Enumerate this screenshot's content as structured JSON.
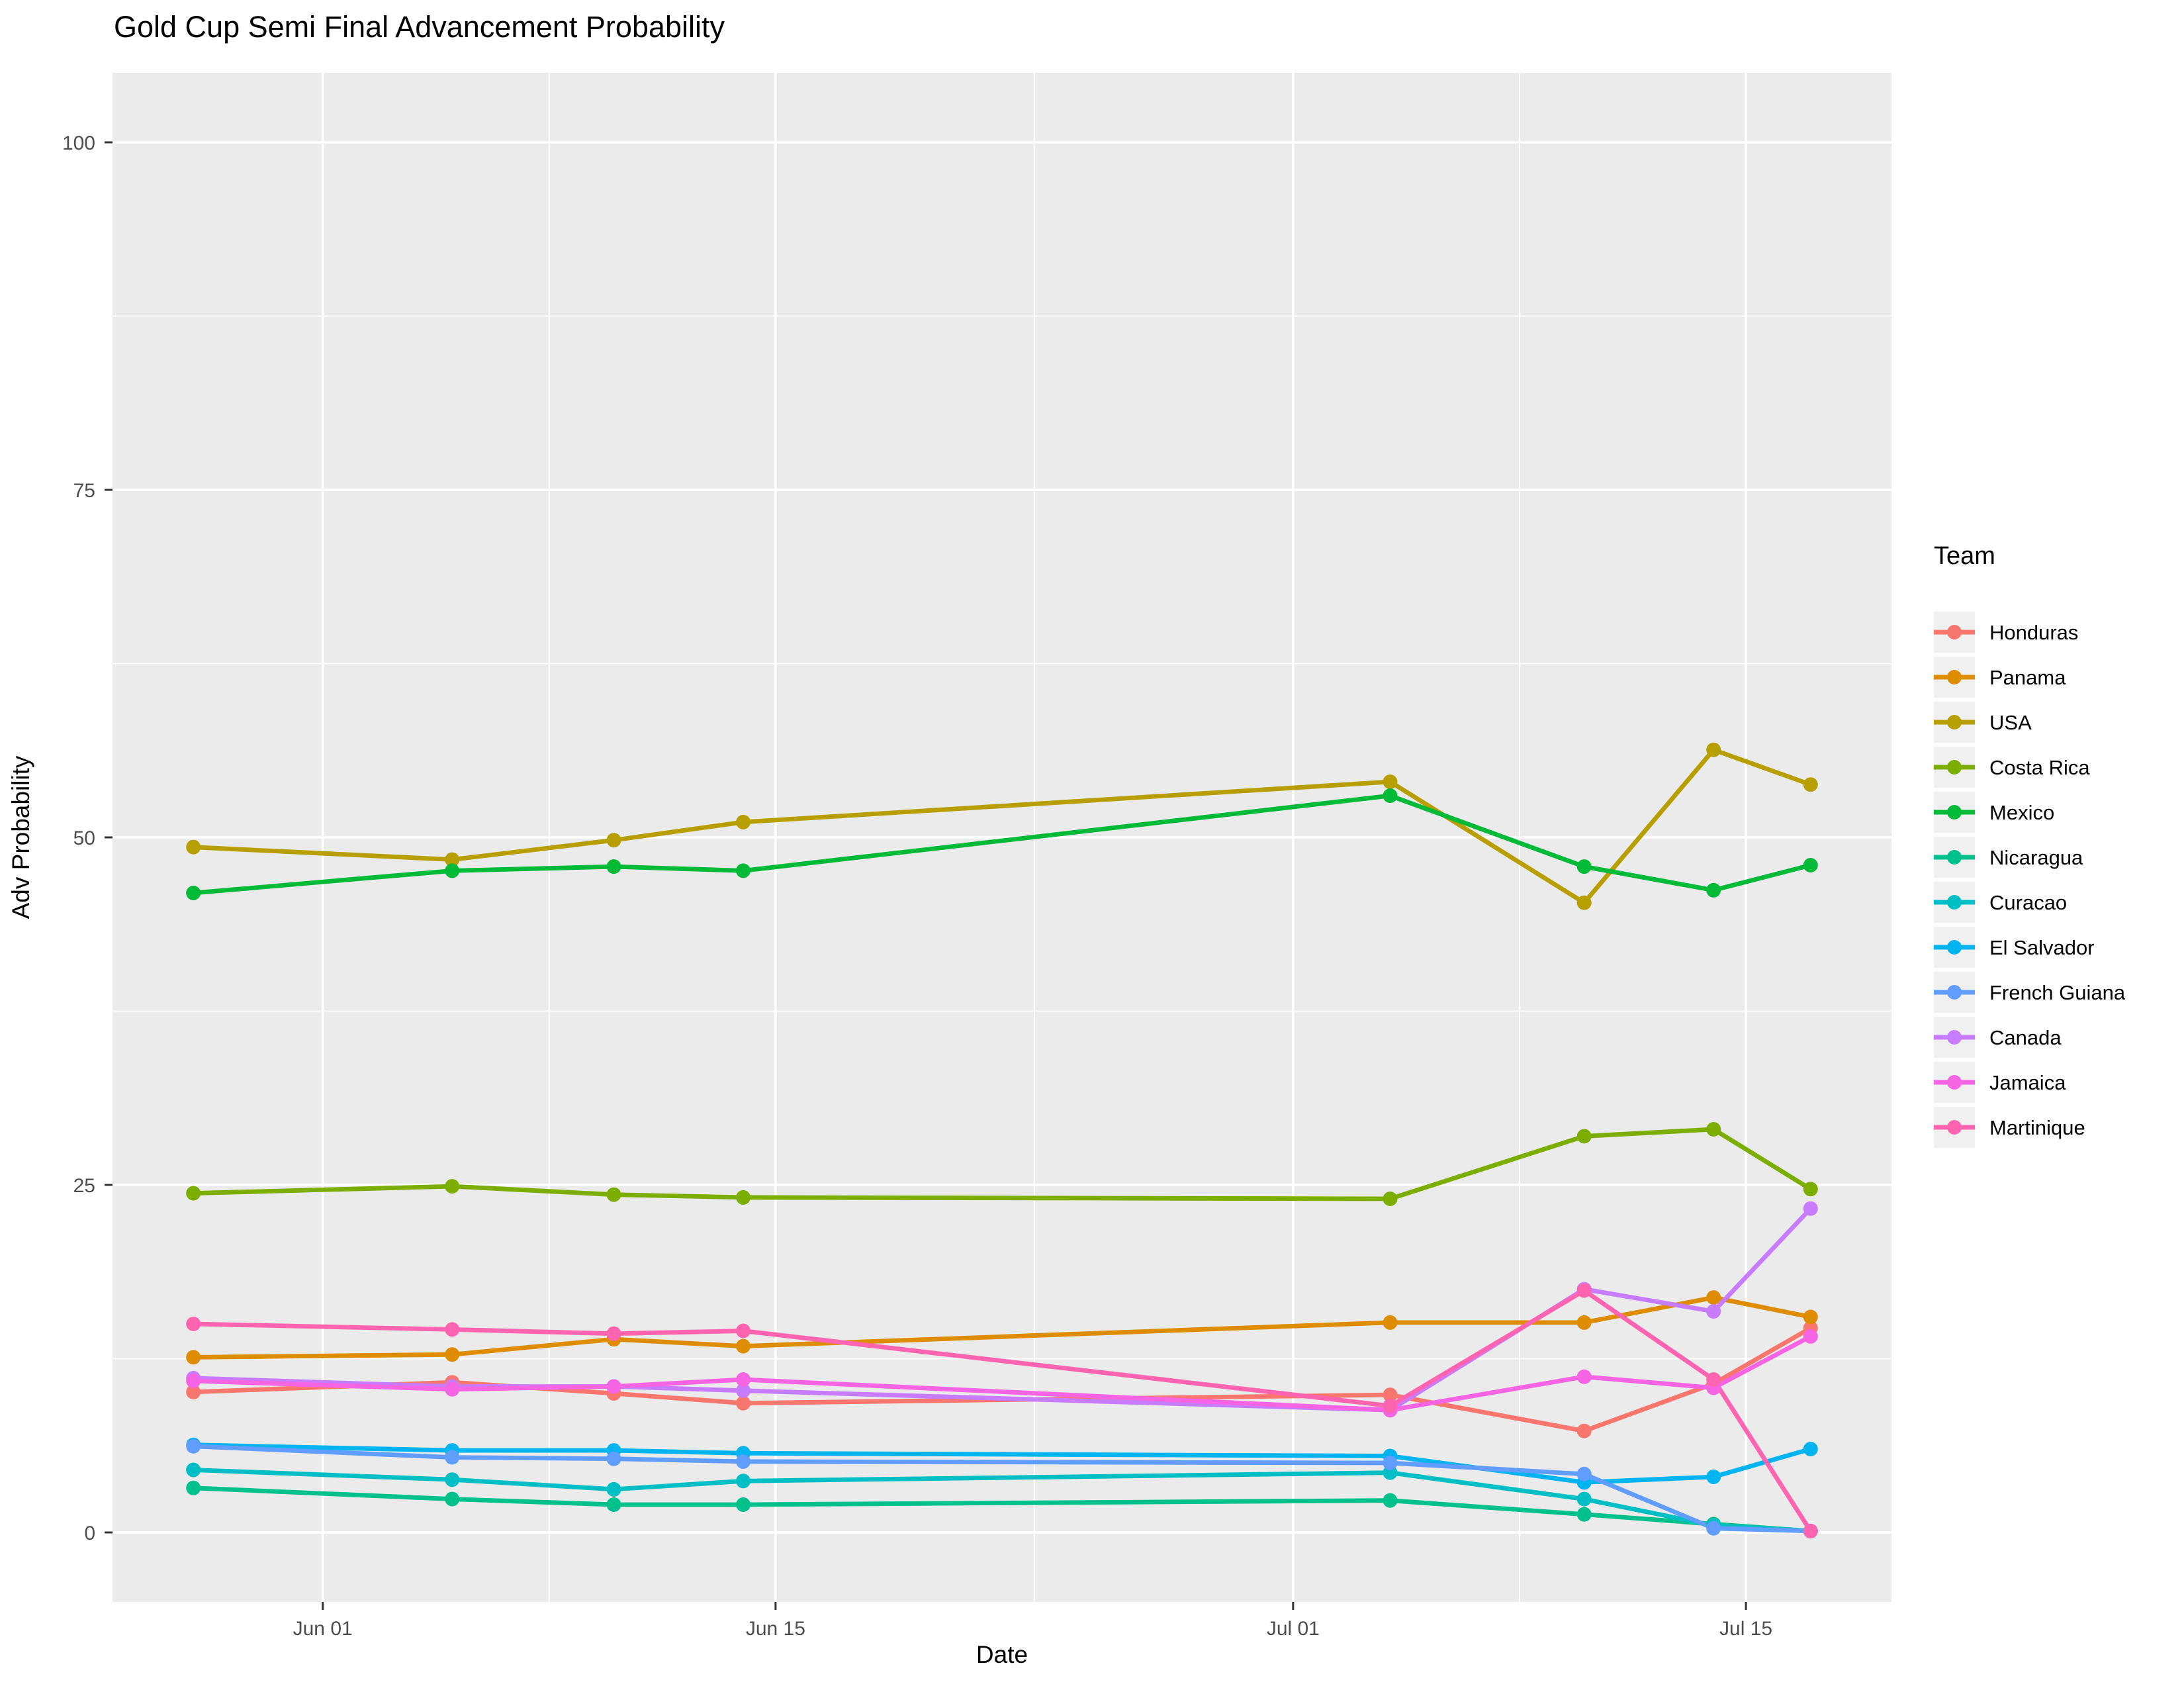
{
  "title": "Gold Cup Semi Final Advancement Probability",
  "axes": {
    "x_label": "Date",
    "y_label": "Adv Probability",
    "x_ticks": [
      {
        "day": 4,
        "label": "Jun 01"
      },
      {
        "day": 18,
        "label": "Jun 15"
      },
      {
        "day": 34,
        "label": "Jul 01"
      },
      {
        "day": 48,
        "label": "Jul 15"
      }
    ],
    "x_minor_days": [
      11,
      26,
      41
    ],
    "y_ticks": [
      0,
      25,
      50,
      75,
      100
    ],
    "y_minor": [
      12.5,
      37.5,
      62.5,
      87.5
    ],
    "x_range_days": [
      -2.5,
      52.5
    ],
    "y_range": [
      -5,
      105
    ]
  },
  "legend": {
    "title": "Team"
  },
  "colors": {
    "panel_bg": "#EBEBEB",
    "grid": "#FFFFFF",
    "tick_mark": "#333333",
    "tick_label": "#4D4D4D",
    "legend_key_bg": "#F0F0F0"
  },
  "chart_data": {
    "type": "line",
    "title": "Gold Cup Semi Final Advancement Probability",
    "xlabel": "Date",
    "ylabel": "Adv Probability",
    "ylim": [
      0,
      100
    ],
    "grid": true,
    "legend_position": "right",
    "x_dates": [
      "May 28",
      "Jun 05",
      "Jun 10",
      "Jun 14",
      "Jul 04",
      "Jul 10",
      "Jul 14",
      "Jul 17"
    ],
    "x_days_from_start": [
      0,
      8,
      13,
      17,
      37,
      43,
      47,
      50
    ],
    "series": [
      {
        "name": "Honduras",
        "color": "#F8766D",
        "values": [
          10.1,
          10.8,
          10.0,
          9.3,
          9.9,
          7.3,
          10.7,
          14.7
        ]
      },
      {
        "name": "Panama",
        "color": "#DE8C00",
        "values": [
          12.6,
          12.8,
          13.9,
          13.4,
          15.1,
          15.1,
          16.9,
          15.5
        ]
      },
      {
        "name": "USA",
        "color": "#B79F00",
        "values": [
          49.3,
          48.4,
          49.8,
          51.1,
          54.0,
          45.3,
          56.3,
          53.8
        ]
      },
      {
        "name": "Costa Rica",
        "color": "#7CAE00",
        "values": [
          24.4,
          24.9,
          24.3,
          24.1,
          24.0,
          28.5,
          29.0,
          24.7
        ]
      },
      {
        "name": "Mexico",
        "color": "#00BA38",
        "values": [
          46.0,
          47.6,
          47.9,
          47.6,
          53.0,
          47.9,
          46.2,
          48.0
        ]
      },
      {
        "name": "Nicaragua",
        "color": "#00C08B",
        "values": [
          3.2,
          2.4,
          2.0,
          2.0,
          2.3,
          1.3,
          0.6,
          0.1
        ]
      },
      {
        "name": "Curacao",
        "color": "#00BFC4",
        "values": [
          4.5,
          3.8,
          3.1,
          3.7,
          4.3,
          2.4,
          0.5,
          0.1
        ]
      },
      {
        "name": "El Salvador",
        "color": "#00B4F0",
        "values": [
          6.3,
          5.9,
          5.9,
          5.7,
          5.5,
          3.6,
          4.0,
          6.0
        ]
      },
      {
        "name": "French Guiana",
        "color": "#619CFF",
        "values": [
          6.2,
          5.4,
          5.3,
          5.1,
          5.0,
          4.2,
          0.3,
          0.1
        ]
      },
      {
        "name": "Canada",
        "color": "#C77CFF",
        "values": [
          11.1,
          10.5,
          10.5,
          10.2,
          8.8,
          17.5,
          15.9,
          23.3
        ]
      },
      {
        "name": "Jamaica",
        "color": "#F564E3",
        "values": [
          10.9,
          10.3,
          10.5,
          11.0,
          8.8,
          11.2,
          10.4,
          14.1
        ]
      },
      {
        "name": "Martinique",
        "color": "#FF64B0",
        "values": [
          15.0,
          14.6,
          14.3,
          14.5,
          9.1,
          17.4,
          11.0,
          0.1
        ]
      }
    ]
  }
}
